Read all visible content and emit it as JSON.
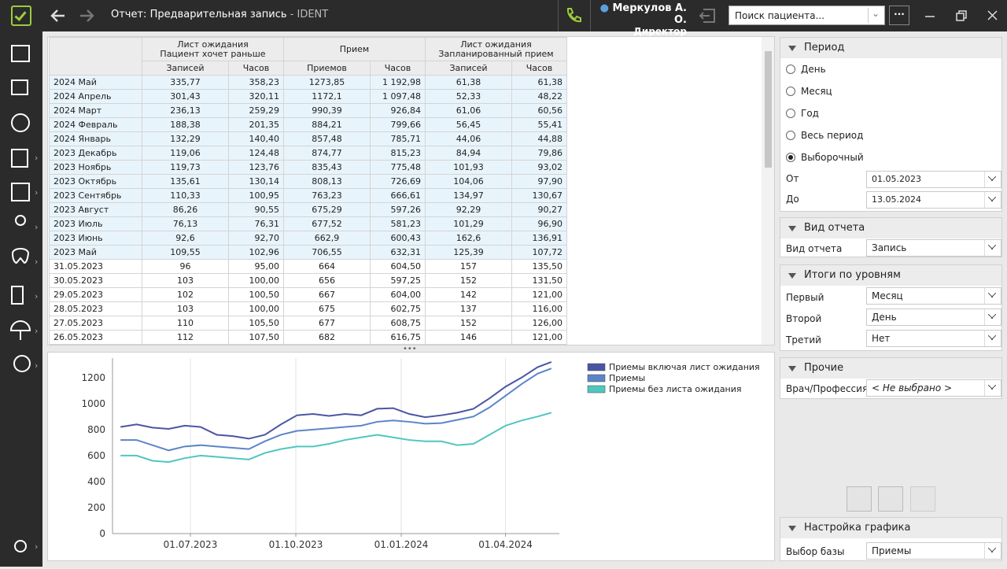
{
  "header": {
    "title": "Отчет: Предварительная запись",
    "app": "IDENT",
    "user": "Меркулов А. О.",
    "role": "Директор",
    "search_placeholder": "Поиск пациента..."
  },
  "table": {
    "group_headers": [
      [
        "Лист ожидания",
        "Пациент хочет раньше"
      ],
      [
        "Прием"
      ],
      [
        "Лист ожидания",
        "Запланированный прием"
      ]
    ],
    "sub_headers": [
      "Записей",
      "Часов",
      "Приемов",
      "Часов",
      "Записей",
      "Часов"
    ],
    "rows": [
      [
        "2024 Май",
        "335,77",
        "358,23",
        "1273,85",
        "1 192,98",
        "61,38",
        "61,38"
      ],
      [
        "2024 Апрель",
        "301,43",
        "320,11",
        "1172,1",
        "1 097,48",
        "52,33",
        "48,22"
      ],
      [
        "2024 Март",
        "236,13",
        "259,29",
        "990,39",
        "926,84",
        "61,06",
        "60,56"
      ],
      [
        "2024 Февраль",
        "188,38",
        "201,35",
        "884,21",
        "799,66",
        "56,45",
        "55,41"
      ],
      [
        "2024 Январь",
        "132,29",
        "140,40",
        "857,48",
        "785,71",
        "44,06",
        "44,88"
      ],
      [
        "2023 Декабрь",
        "119,06",
        "124,48",
        "874,77",
        "815,23",
        "84,94",
        "79,86"
      ],
      [
        "2023 Ноябрь",
        "119,73",
        "123,76",
        "835,43",
        "775,48",
        "101,93",
        "93,02"
      ],
      [
        "2023 Октябрь",
        "135,61",
        "130,14",
        "808,13",
        "726,69",
        "104,06",
        "97,90"
      ],
      [
        "2023 Сентябрь",
        "110,33",
        "100,95",
        "763,23",
        "666,61",
        "134,97",
        "130,67"
      ],
      [
        "2023 Август",
        "86,26",
        "90,55",
        "675,29",
        "597,26",
        "92,29",
        "90,27"
      ],
      [
        "2023 Июль",
        "76,13",
        "76,31",
        "677,52",
        "581,23",
        "101,29",
        "96,90"
      ],
      [
        "2023 Июнь",
        "92,6",
        "92,70",
        "662,9",
        "600,43",
        "162,6",
        "136,91"
      ],
      [
        "2023 Май",
        "109,55",
        "102,96",
        "706,55",
        "632,31",
        "125,39",
        "107,72"
      ],
      [
        "31.05.2023",
        "96",
        "95,00",
        "664",
        "604,50",
        "157",
        "135,50"
      ],
      [
        "30.05.2023",
        "103",
        "100,00",
        "656",
        "597,25",
        "152",
        "131,50"
      ],
      [
        "29.05.2023",
        "102",
        "100,50",
        "667",
        "604,00",
        "142",
        "121,00"
      ],
      [
        "28.05.2023",
        "103",
        "100,00",
        "675",
        "602,75",
        "137",
        "116,00"
      ],
      [
        "27.05.2023",
        "110",
        "105,50",
        "677",
        "608,75",
        "152",
        "126,00"
      ],
      [
        "26.05.2023",
        "112",
        "107,50",
        "682",
        "616,75",
        "146",
        "121,00"
      ]
    ]
  },
  "chart_data": {
    "type": "line",
    "legend": "right",
    "grid": "x",
    "x": [
      "01.05.2023",
      "15.05.2023",
      "29.05.2023",
      "12.06.2023",
      "26.06.2023",
      "10.07.2023",
      "24.07.2023",
      "07.08.2023",
      "21.08.2023",
      "04.09.2023",
      "18.09.2023",
      "02.10.2023",
      "16.10.2023",
      "30.10.2023",
      "13.11.2023",
      "27.11.2023",
      "11.12.2023",
      "25.12.2023",
      "08.01.2024",
      "22.01.2024",
      "05.02.2024",
      "19.02.2024",
      "04.03.2024",
      "18.03.2024",
      "01.04.2024",
      "15.04.2024",
      "29.04.2024",
      "11.05.2024"
    ],
    "series": [
      {
        "name": "Приемы включая лист ожидания",
        "color": "#4b55a4",
        "values": [
          820,
          840,
          815,
          805,
          830,
          820,
          760,
          750,
          730,
          760,
          840,
          910,
          920,
          905,
          920,
          910,
          960,
          965,
          920,
          895,
          910,
          930,
          960,
          1040,
          1130,
          1200,
          1280,
          1320
        ]
      },
      {
        "name": "Приемы",
        "color": "#5b85c8",
        "values": [
          720,
          720,
          680,
          640,
          670,
          680,
          670,
          660,
          650,
          710,
          760,
          790,
          800,
          810,
          820,
          830,
          860,
          870,
          860,
          845,
          850,
          875,
          900,
          970,
          1060,
          1150,
          1230,
          1270
        ]
      },
      {
        "name": "Приемы без листа ожидания",
        "color": "#4fc6c0",
        "values": [
          600,
          600,
          560,
          550,
          580,
          600,
          590,
          580,
          570,
          620,
          650,
          670,
          670,
          690,
          720,
          740,
          760,
          740,
          720,
          710,
          710,
          680,
          690,
          760,
          830,
          870,
          900,
          930
        ]
      }
    ],
    "xlim": [
      "24.04.2023",
      "18.05.2024"
    ],
    "xticks": [
      "01.07.2023",
      "01.10.2023",
      "01.01.2024",
      "01.04.2024"
    ],
    "ylim": [
      0,
      1350
    ],
    "yticks": [
      0,
      200,
      400,
      600,
      800,
      1000,
      1200
    ]
  },
  "panel": {
    "period": {
      "title": "Период",
      "options": [
        "День",
        "Месяц",
        "Год",
        "Весь период",
        "Выборочный"
      ],
      "from_label": "От",
      "from": "01.05.2023",
      "to_label": "До",
      "to": "13.05.2024"
    },
    "report": {
      "title": "Вид отчета",
      "label": "Вид отчета",
      "value": "Запись"
    },
    "levels": {
      "title": "Итоги по уровням",
      "rows": [
        [
          "Первый",
          "Месяц"
        ],
        [
          "Второй",
          "День"
        ],
        [
          "Третий",
          "Нет"
        ]
      ]
    },
    "other": {
      "title": "Прочие",
      "label": "Врач/Профессия",
      "value": "< Не выбрано >"
    },
    "chart_settings": {
      "title": "Настройка графика",
      "label": "Выбор базы",
      "value": "Приемы"
    }
  }
}
